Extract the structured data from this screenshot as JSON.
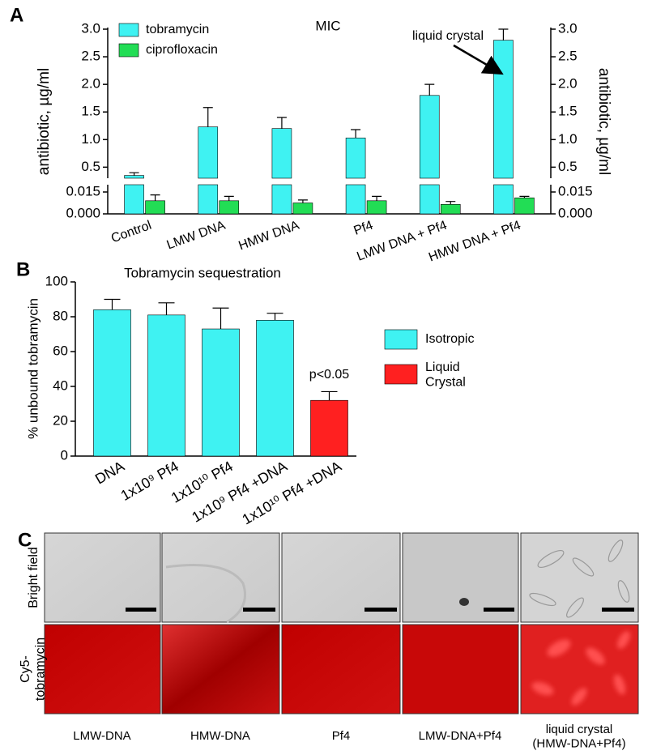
{
  "panel_labels": [
    "A",
    "B",
    "C"
  ],
  "chart_data": [
    {
      "type": "broken_bar",
      "title": "MIC",
      "ylabel": "antibiotic, µg/ml",
      "y2label": "antibiotic, µg/ml",
      "categories": [
        "Control",
        "LMW DNA",
        "HMW DNA",
        "Pf4",
        "LMW DNA + Pf4",
        "HMW DNA + Pf4"
      ],
      "series": [
        {
          "name": "tobramycin",
          "color": "#3ff2f2",
          "values": [
            0.35,
            1.23,
            1.2,
            1.03,
            1.8,
            2.8
          ],
          "errors": [
            0.05,
            0.35,
            0.2,
            0.15,
            0.2,
            0.2
          ]
        },
        {
          "name": "ciprofloxacin",
          "color": "#22dd55",
          "values": [
            0.009,
            0.009,
            0.0075,
            0.009,
            0.0065,
            0.011
          ],
          "errors": [
            0.004,
            0.003,
            0.002,
            0.003,
            0.002,
            0.001
          ]
        }
      ],
      "ylim": [
        0.3,
        3.0
      ],
      "yticks": [
        0.5,
        {
          "value": 1,
          "label": "1.0"
        },
        1.5,
        {
          "value": 2,
          "label": "2.0"
        },
        2.5,
        {
          "value": 3,
          "label": "3.0"
        }
      ],
      "lower_ylim": [
        0,
        0.02
      ],
      "lower_yticks": [
        {
          "value": 0,
          "label": "0.000"
        },
        {
          "value": 0.015,
          "label": "0.015"
        }
      ],
      "legend": "upper left",
      "annotation": "liquid crystal"
    },
    {
      "type": "bar",
      "title": "Tobramycin sequestration",
      "ylabel": "% unbound tobramycin",
      "categories": [
        "DNA",
        "1x10⁹ Pf4",
        "1x10¹⁰ Pf4",
        "1x10⁹ Pf4 +DNA",
        "1x10¹⁰ Pf4 +DNA"
      ],
      "values": [
        84,
        81,
        73,
        78,
        32
      ],
      "errors": [
        6,
        7,
        12,
        4,
        5
      ],
      "colors": [
        "#3ff2f2",
        "#3ff2f2",
        "#3ff2f2",
        "#3ff2f2",
        "#ff2020"
      ],
      "legend": [
        {
          "name": "Isotropic",
          "color": "#3ff2f2"
        },
        {
          "name": "Liquid\nCrystal",
          "color": "#ff2020"
        }
      ],
      "ylim": [
        0,
        100
      ],
      "yticks": [
        0,
        20,
        40,
        60,
        80,
        100
      ],
      "annotation": "p<0.05"
    }
  ],
  "micrographs": {
    "row_labels": [
      "Bright field",
      "Cy5-\ntobramycin"
    ],
    "column_labels": [
      "LMW-DNA",
      "HMW-DNA",
      "Pf4",
      "LMW-DNA+Pf4",
      "liquid crystal\n(HMW-DNA+Pf4)"
    ]
  }
}
